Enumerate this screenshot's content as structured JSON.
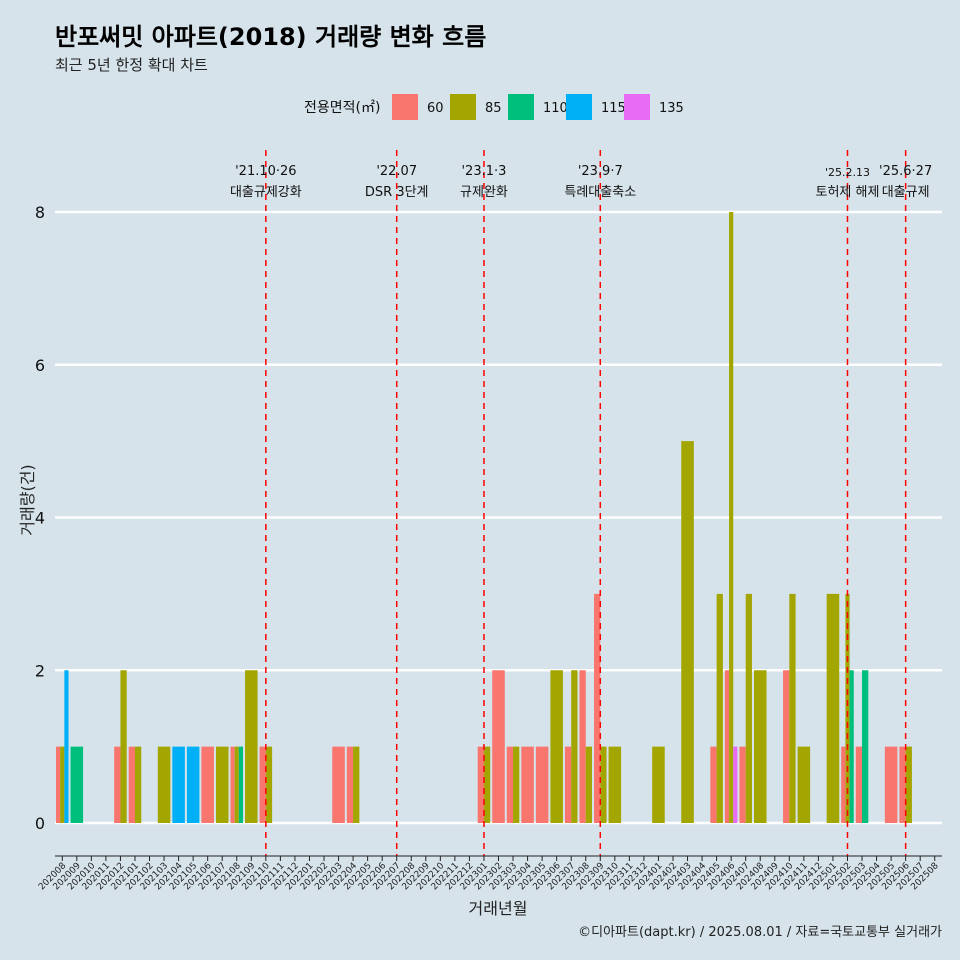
{
  "title": "반포써밋 아파트(2018) 거래량 변화 흐름",
  "subtitle": "최근 5년 한정 확대 차트",
  "caption": "©디아파트(dapt.kr) / 2025.08.01 / 자료=국토교통부 실거래가",
  "chart_data": {
    "type": "bar",
    "xlabel": "거래년월",
    "ylabel": "거래량(건)",
    "ylim": [
      0,
      8
    ],
    "y_ticks": [
      0,
      2,
      4,
      6,
      8
    ],
    "grid": true,
    "legend_title": "전용면적(㎡)",
    "legend_position": "top",
    "categories": [
      "202008",
      "202009",
      "202010",
      "202011",
      "202012",
      "202101",
      "202102",
      "202103",
      "202104",
      "202105",
      "202106",
      "202107",
      "202108",
      "202109",
      "202110",
      "202111",
      "202112",
      "202201",
      "202202",
      "202203",
      "202204",
      "202205",
      "202206",
      "202207",
      "202208",
      "202209",
      "202210",
      "202211",
      "202212",
      "202301",
      "202302",
      "202303",
      "202304",
      "202305",
      "202306",
      "202307",
      "202308",
      "202309",
      "202310",
      "202311",
      "202312",
      "202401",
      "202402",
      "202403",
      "202404",
      "202405",
      "202406",
      "202407",
      "202408",
      "202409",
      "202410",
      "202411",
      "202412",
      "202501",
      "202502",
      "202503",
      "202504",
      "202505",
      "202506",
      "202507",
      "202508"
    ],
    "series": [
      {
        "name": "60",
        "color": "#f8766d",
        "values": [
          1,
          0,
          0,
          0,
          1,
          1,
          0,
          0,
          0,
          0,
          1,
          0,
          1,
          0,
          1,
          0,
          0,
          0,
          0,
          1,
          1,
          0,
          0,
          0,
          0,
          0,
          0,
          0,
          0,
          1,
          2,
          1,
          1,
          1,
          0,
          1,
          2,
          3,
          0,
          0,
          0,
          0,
          0,
          0,
          0,
          1,
          2,
          1,
          0,
          0,
          2,
          0,
          0,
          0,
          1,
          1,
          0,
          1,
          1,
          0,
          0
        ]
      },
      {
        "name": "85",
        "color": "#a3a500",
        "values": [
          1,
          0,
          0,
          0,
          2,
          1,
          0,
          1,
          0,
          0,
          0,
          1,
          1,
          2,
          1,
          0,
          0,
          0,
          0,
          0,
          1,
          0,
          0,
          0,
          0,
          0,
          0,
          0,
          0,
          1,
          0,
          1,
          0,
          0,
          2,
          2,
          1,
          1,
          1,
          0,
          0,
          1,
          0,
          5,
          0,
          3,
          8,
          3,
          2,
          0,
          3,
          1,
          0,
          3,
          3,
          0,
          0,
          0,
          1,
          0,
          0
        ]
      },
      {
        "name": "110",
        "color": "#00bf7d",
        "values": [
          0,
          1,
          0,
          0,
          0,
          0,
          0,
          0,
          0,
          0,
          0,
          0,
          1,
          0,
          0,
          0,
          0,
          0,
          0,
          0,
          0,
          0,
          0,
          0,
          0,
          0,
          0,
          0,
          0,
          0,
          0,
          0,
          0,
          0,
          0,
          0,
          0,
          0,
          0,
          0,
          0,
          0,
          0,
          0,
          0,
          0,
          0,
          0,
          0,
          0,
          0,
          0,
          0,
          0,
          2,
          2,
          0,
          0,
          0,
          0,
          0
        ]
      },
      {
        "name": "115",
        "color": "#00b0f6",
        "values": [
          2,
          0,
          0,
          0,
          0,
          0,
          0,
          0,
          1,
          1,
          0,
          0,
          0,
          0,
          0,
          0,
          0,
          0,
          0,
          0,
          0,
          0,
          0,
          0,
          0,
          0,
          0,
          0,
          0,
          0,
          0,
          0,
          0,
          0,
          0,
          0,
          0,
          0,
          0,
          0,
          0,
          0,
          0,
          0,
          0,
          0,
          0,
          0,
          0,
          0,
          0,
          0,
          0,
          0,
          0,
          0,
          0,
          0,
          0,
          0,
          0
        ]
      },
      {
        "name": "135",
        "color": "#e76bf3",
        "values": [
          0,
          0,
          0,
          0,
          0,
          0,
          0,
          0,
          0,
          0,
          0,
          0,
          0,
          0,
          0,
          0,
          0,
          0,
          0,
          0,
          0,
          0,
          0,
          0,
          0,
          0,
          0,
          0,
          0,
          0,
          0,
          0,
          0,
          0,
          0,
          0,
          0,
          0,
          0,
          0,
          0,
          0,
          0,
          0,
          0,
          0,
          1,
          0,
          0,
          0,
          0,
          0,
          0,
          0,
          0,
          0,
          0,
          0,
          0,
          0,
          0
        ]
      }
    ],
    "annotations": [
      {
        "x": "202110",
        "date": "'21.10·26",
        "label": "대출규제강화"
      },
      {
        "x": "202207",
        "date": "'22.07",
        "label": "DSR 3단계"
      },
      {
        "x": "202301",
        "date": "'23.1·3",
        "label": "규제완화"
      },
      {
        "x": "202309",
        "date": "'23.9·7",
        "label": "특례대출축소"
      },
      {
        "x": "202502",
        "date": "'25.2.13",
        "label": "토허제 해제"
      },
      {
        "x": "202506",
        "date": "'25.6·27",
        "label": "대출규제"
      }
    ],
    "annotation_color": "#ff0000",
    "bar_colors_note": "see series colors"
  }
}
